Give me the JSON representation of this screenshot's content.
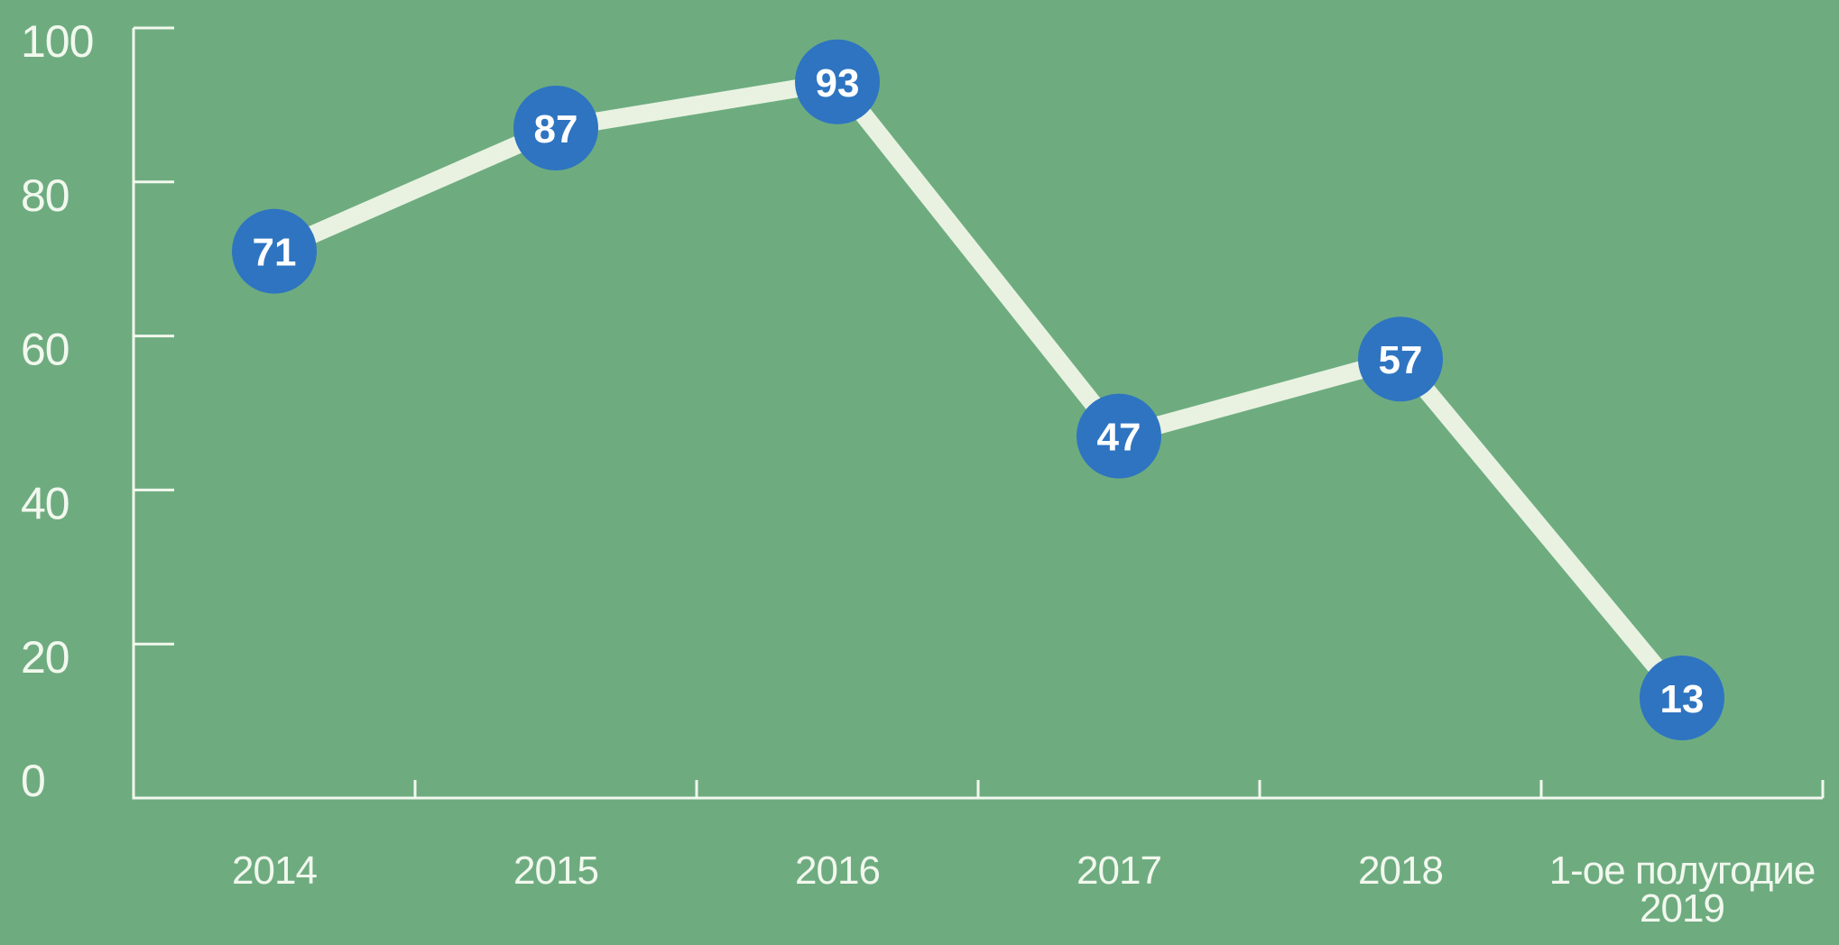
{
  "chart": {
    "background_color": "#6eac80",
    "axis_color": "#f2f8ee",
    "tick_label_color": "#f2f8ee",
    "series_line_color": "#e9f2e1",
    "marker_fill_color": "#2e74c1",
    "marker_text_color": "#ffffff"
  },
  "chart_data": {
    "type": "line",
    "title": "",
    "xlabel": "",
    "ylabel": "",
    "categories": [
      "2014",
      "2015",
      "2016",
      "2017",
      "2018",
      "1-ое полугодие 2019"
    ],
    "category_label_lines": [
      [
        "2014"
      ],
      [
        "2015"
      ],
      [
        "2016"
      ],
      [
        "2017"
      ],
      [
        "2018"
      ],
      [
        "1-ое полугодие",
        "2019"
      ]
    ],
    "series": [
      {
        "name": "",
        "values": [
          71,
          87,
          93,
          47,
          57,
          13
        ]
      }
    ],
    "data_labels": [
      "71",
      "87",
      "93",
      "47",
      "57",
      "13"
    ],
    "ylim": [
      0,
      100
    ],
    "yticks": [
      100,
      80,
      60,
      40,
      20,
      0
    ],
    "ytick_labels": [
      "100",
      "80",
      "60",
      "40",
      "20",
      "0"
    ],
    "grid": false,
    "legend_position": "none"
  }
}
